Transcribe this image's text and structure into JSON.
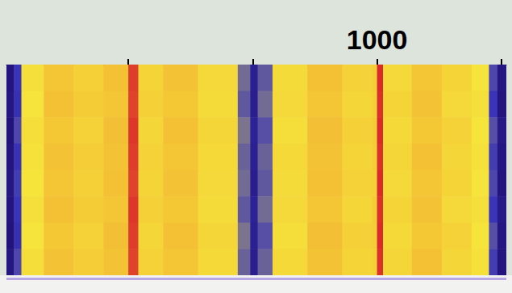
{
  "chart_data": {
    "type": "heatmap",
    "bins": [
      255,
      270,
      285,
      330,
      390,
      450,
      500,
      520,
      570,
      640,
      720,
      745,
      760,
      790,
      860,
      930,
      990,
      1000,
      1012,
      1070,
      1130,
      1190,
      1225,
      1242,
      1260
    ],
    "cells": [
      [
        5,
        20,
        46,
        60,
        54,
        62,
        95,
        52,
        61,
        50,
        26,
        10,
        24,
        48,
        62,
        53,
        55,
        98,
        50,
        60,
        52,
        44,
        22,
        6
      ],
      [
        6,
        18,
        44,
        62,
        56,
        60,
        94,
        54,
        59,
        48,
        24,
        9,
        26,
        50,
        60,
        51,
        54,
        97,
        52,
        61,
        50,
        46,
        20,
        5
      ],
      [
        4,
        22,
        47,
        59,
        53,
        63,
        96,
        51,
        62,
        51,
        27,
        11,
        23,
        47,
        63,
        54,
        56,
        98,
        49,
        59,
        53,
        43,
        23,
        7
      ],
      [
        5,
        19,
        45,
        61,
        55,
        61,
        95,
        53,
        60,
        49,
        25,
        10,
        25,
        49,
        61,
        52,
        55,
        97,
        51,
        62,
        51,
        45,
        21,
        6
      ],
      [
        6,
        21,
        43,
        60,
        54,
        62,
        94,
        52,
        61,
        50,
        26,
        9,
        24,
        48,
        62,
        53,
        54,
        98,
        50,
        60,
        52,
        44,
        22,
        5
      ],
      [
        5,
        20,
        46,
        62,
        56,
        60,
        96,
        54,
        59,
        48,
        24,
        11,
        26,
        50,
        60,
        51,
        56,
        97,
        52,
        61,
        50,
        46,
        20,
        7
      ],
      [
        4,
        18,
        44,
        59,
        53,
        63,
        95,
        51,
        62,
        51,
        27,
        10,
        23,
        47,
        63,
        54,
        55,
        98,
        49,
        59,
        53,
        43,
        23,
        6
      ],
      [
        6,
        22,
        47,
        61,
        55,
        61,
        94,
        53,
        60,
        49,
        25,
        9,
        25,
        49,
        61,
        52,
        54,
        97,
        51,
        62,
        51,
        45,
        21,
        5
      ]
    ],
    "color_range": [
      0,
      100
    ],
    "xlim": [
      255,
      1260
    ],
    "xticks": [
      {
        "value": 500,
        "label": null
      },
      {
        "value": 750,
        "label": null
      },
      1000,
      {
        "value": 1250,
        "label": null
      }
    ],
    "grid": false,
    "tick_labels": "x"
  }
}
